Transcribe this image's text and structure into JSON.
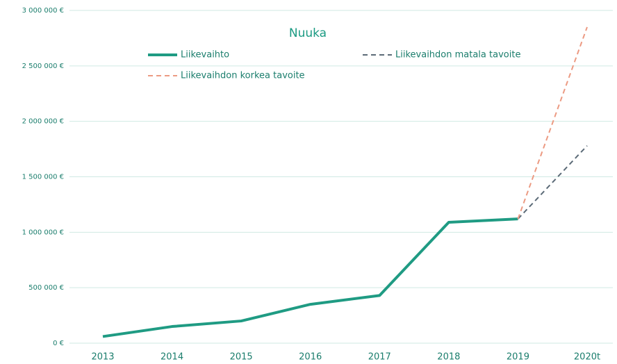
{
  "chart_data": {
    "type": "line",
    "title": "Nuuka",
    "categories": [
      "2013",
      "2014",
      "2015",
      "2016",
      "2017",
      "2018",
      "2019",
      "2020t"
    ],
    "series": [
      {
        "name": "Liikevaihto",
        "color": "#1f9b83",
        "dashed": false,
        "values": [
          60000,
          150000,
          200000,
          350000,
          430000,
          1090000,
          1120000,
          null
        ]
      },
      {
        "name": "Liikevaihdon matala tavoite",
        "color": "#5b6a77",
        "dashed": true,
        "values": [
          null,
          null,
          null,
          null,
          null,
          null,
          1120000,
          1780000
        ]
      },
      {
        "name": "Liikevaihdon korkea tavoite",
        "color": "#ec9a82",
        "dashed": true,
        "values": [
          null,
          null,
          null,
          null,
          null,
          null,
          1120000,
          2850000
        ]
      }
    ],
    "ylim": [
      0,
      3000000
    ],
    "yticks": [
      {
        "value": 0,
        "label": "0 €"
      },
      {
        "value": 500000,
        "label": "500 000 €"
      },
      {
        "value": 1000000,
        "label": "1 000 000 €"
      },
      {
        "value": 1500000,
        "label": "1 500 000 €"
      },
      {
        "value": 2000000,
        "label": "2 000 000 €"
      },
      {
        "value": 2500000,
        "label": "2 500 000 €"
      },
      {
        "value": 3000000,
        "label": "3 000 000 €"
      }
    ],
    "grid": true
  }
}
